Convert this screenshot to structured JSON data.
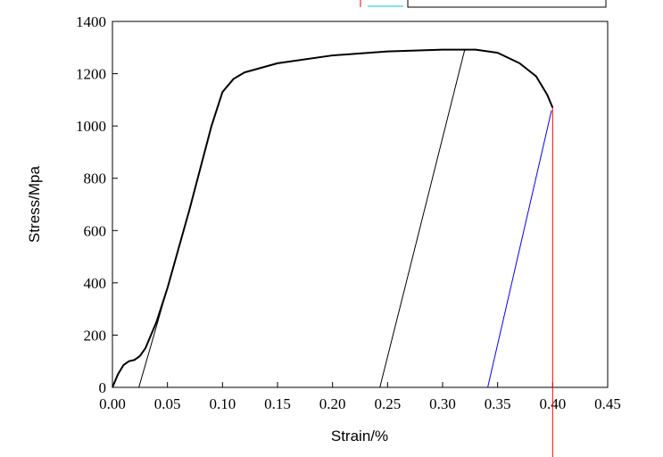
{
  "chart_data": {
    "type": "line",
    "x_label": "Strain/%",
    "y_label": "Stress/Mpa",
    "xlim": [
      0,
      0.45
    ],
    "ylim": [
      0,
      1400
    ],
    "xticks": [
      {
        "value": 0,
        "label": "0.00"
      },
      {
        "value": 0.05,
        "label": "0.05"
      },
      {
        "value": 0.1,
        "label": "0.10"
      },
      {
        "value": 0.15,
        "label": "0.15"
      },
      {
        "value": 0.2,
        "label": "0.20"
      },
      {
        "value": 0.25,
        "label": "0.25"
      },
      {
        "value": 0.3,
        "label": "0.30"
      },
      {
        "value": 0.35,
        "label": "0.35"
      },
      {
        "value": 0.4,
        "label": "0.40"
      },
      {
        "value": 0.45,
        "label": "0.45"
      }
    ],
    "yticks": [
      0,
      200,
      400,
      600,
      800,
      1000,
      1200,
      1400
    ],
    "grid": false,
    "series": [
      {
        "color": "#000000",
        "width": 2,
        "x": [
          0,
          0.005,
          0.01,
          0.015,
          0.02,
          0.025,
          0.03,
          0.04,
          0.05,
          0.06,
          0.07,
          0.08,
          0.09,
          0.1,
          0.11,
          0.12,
          0.15,
          0.2,
          0.25,
          0.3,
          0.33,
          0.35,
          0.37,
          0.385,
          0.395,
          0.4
        ],
        "values": [
          0,
          50,
          85,
          100,
          105,
          120,
          150,
          250,
          380,
          530,
          680,
          840,
          1000,
          1130,
          1180,
          1205,
          1240,
          1270,
          1285,
          1292,
          1292,
          1280,
          1240,
          1190,
          1120,
          1070
        ]
      },
      {
        "color": "#000000",
        "width": 1,
        "x": [
          0.024,
          0.05
        ],
        "values": [
          0,
          380
        ]
      },
      {
        "color": "#000000",
        "width": 1,
        "x": [
          0.243,
          0.32
        ],
        "values": [
          0,
          1290
        ]
      },
      {
        "color": "#0000ff",
        "width": 1,
        "x": [
          0.341,
          0.399
        ],
        "values": [
          0,
          1060
        ]
      },
      {
        "color": "#ff0000",
        "width": 1,
        "x": [
          0.4,
          0.4
        ],
        "values": [
          1070,
          -270
        ]
      }
    ]
  }
}
